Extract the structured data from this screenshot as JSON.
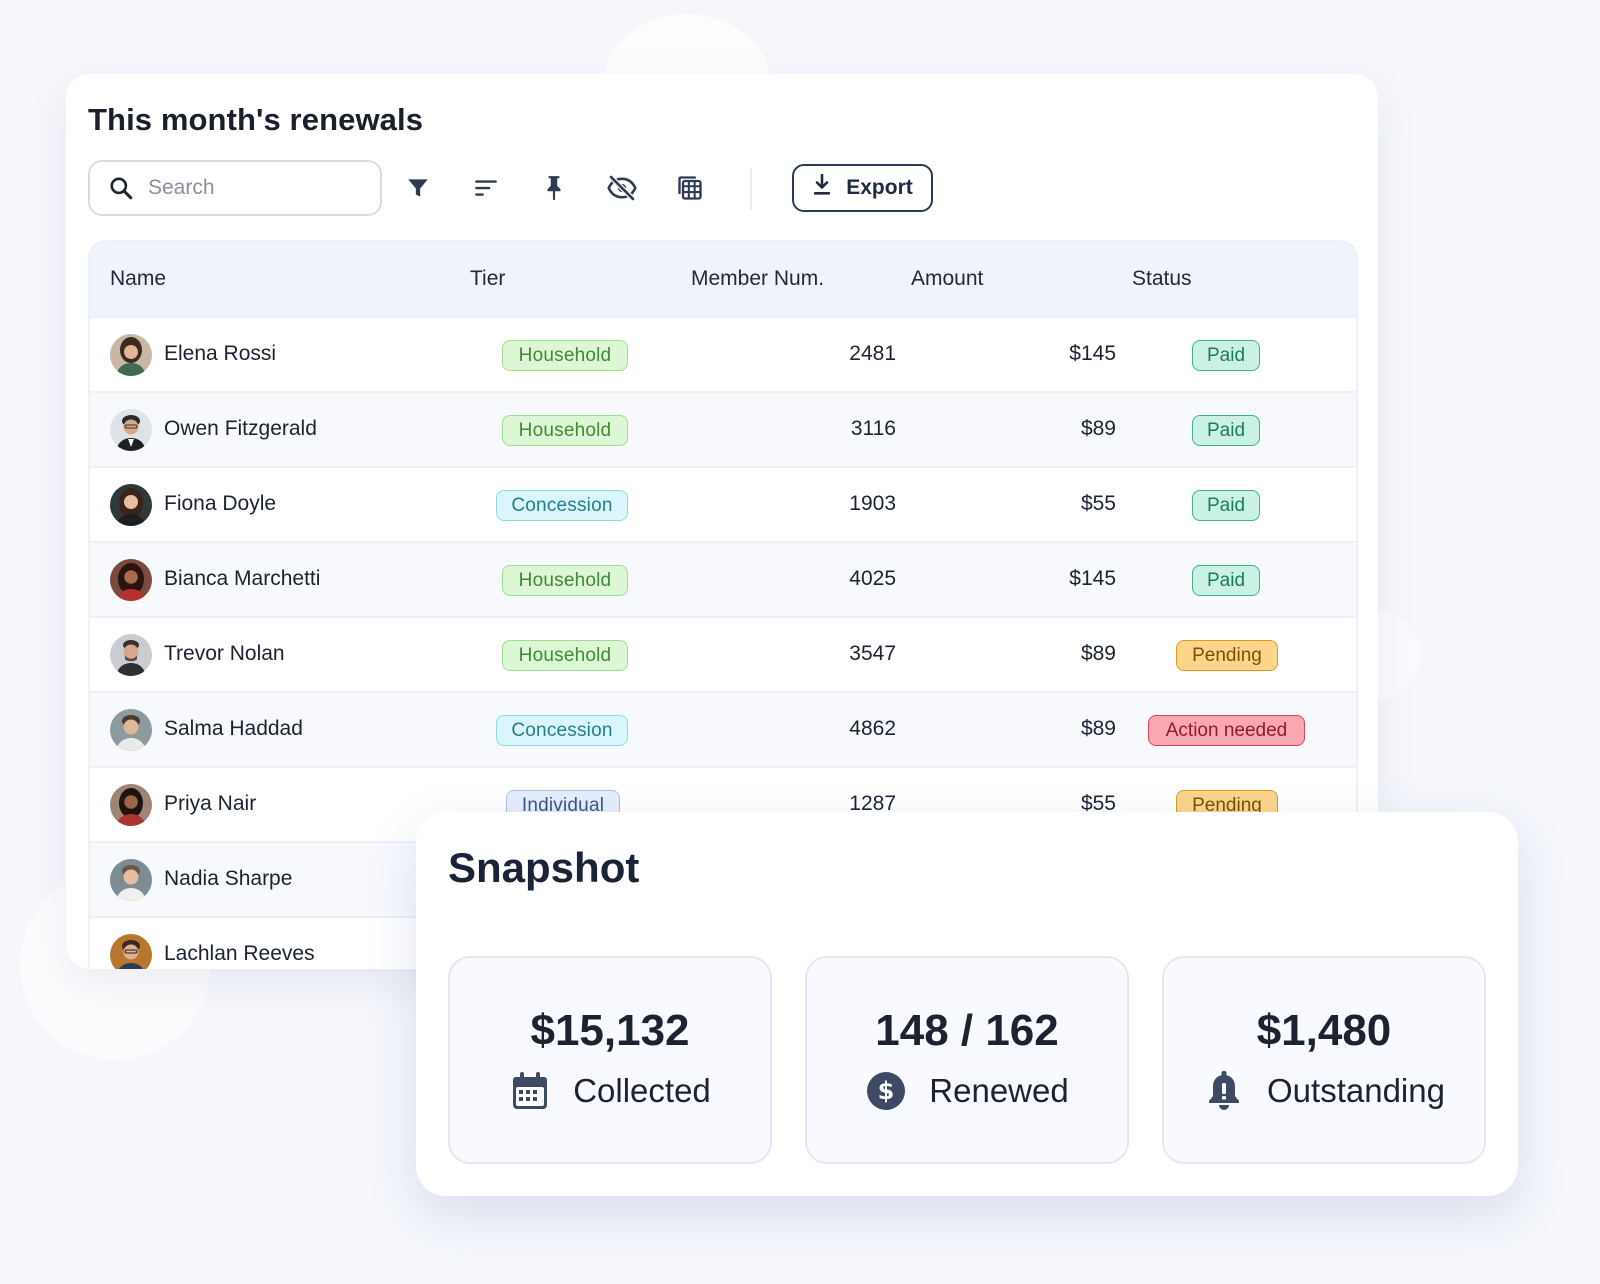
{
  "renewals": {
    "title": "This month's renewals",
    "search": {
      "placeholder": "Search"
    },
    "toolbar_icons": [
      "filter-icon",
      "sort-lines-icon",
      "pin-icon",
      "eye-off-icon",
      "table-grid-icon"
    ],
    "export_label": "Export",
    "columns": [
      "Name",
      "Tier",
      "Member Num.",
      "Amount",
      "Status"
    ],
    "rows": [
      {
        "name": "Elena Rossi",
        "tier": "Household",
        "member_num": "2481",
        "amount": "$145",
        "status": "Paid"
      },
      {
        "name": "Owen Fitzgerald",
        "tier": "Household",
        "member_num": "3116",
        "amount": "$89",
        "status": "Paid"
      },
      {
        "name": "Fiona Doyle",
        "tier": "Concession",
        "member_num": "1903",
        "amount": "$55",
        "status": "Paid"
      },
      {
        "name": "Bianca Marchetti",
        "tier": "Household",
        "member_num": "4025",
        "amount": "$145",
        "status": "Paid"
      },
      {
        "name": "Trevor Nolan",
        "tier": "Household",
        "member_num": "3547",
        "amount": "$89",
        "status": "Pending"
      },
      {
        "name": "Salma Haddad",
        "tier": "Concession",
        "member_num": "4862",
        "amount": "$89",
        "status": "Action needed"
      },
      {
        "name": "Priya Nair",
        "tier": "Individual",
        "member_num": "1287",
        "amount": "$55",
        "status": "Pending"
      },
      {
        "name": "Nadia Sharpe"
      },
      {
        "name": "Lachlan Reeves"
      }
    ]
  },
  "snapshot": {
    "title": "Snapshot",
    "stats": [
      {
        "value": "$15,132",
        "label": "Collected",
        "icon": "calendar-icon"
      },
      {
        "value": "148 / 162",
        "label": "Renewed",
        "icon": "dollar-circle-icon"
      },
      {
        "value": "$1,480",
        "label": "Outstanding",
        "icon": "bell-icon"
      }
    ]
  },
  "colors": {
    "paid": "#c9f1e4",
    "pending": "#fcd58b",
    "action_needed": "#fba7b2",
    "household": "#ddf7d6",
    "concession": "#dbf6fb",
    "individual": "#e6eefb",
    "accent_dark": "#2b3a55"
  }
}
